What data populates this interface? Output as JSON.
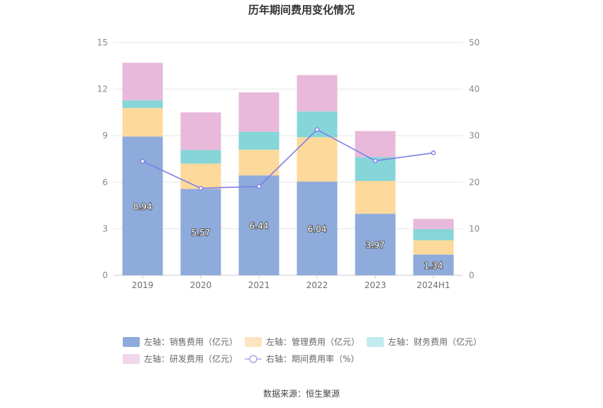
{
  "chart_data": {
    "type": "bar",
    "title": "历年期间费用变化情况",
    "categories": [
      "2019",
      "2020",
      "2021",
      "2022",
      "2023",
      "2024H1"
    ],
    "y_left": {
      "lim": [
        0,
        15
      ],
      "ticks": [
        0,
        3,
        6,
        9,
        12,
        15
      ]
    },
    "y_right": {
      "lim": [
        0,
        50
      ],
      "ticks": [
        0,
        10,
        20,
        30,
        40,
        50
      ]
    },
    "series": [
      {
        "name": "左轴：销售费用（亿元）",
        "type": "bar",
        "axis": "left",
        "color": "#8eabdc",
        "legend_color": "#8eabdc",
        "values": [
          8.94,
          5.57,
          6.44,
          6.04,
          3.97,
          1.34
        ],
        "labels": [
          "8.94",
          "5.57",
          "6.44",
          "6.04",
          "3.97",
          "1.34"
        ]
      },
      {
        "name": "左轴：管理费用（亿元）",
        "type": "bar",
        "axis": "left",
        "color": "#fdd99b",
        "legend_color": "#fde4c0",
        "values": [
          1.85,
          1.63,
          1.65,
          2.86,
          2.11,
          0.92
        ]
      },
      {
        "name": "左轴：财务费用（亿元）",
        "type": "bar",
        "axis": "left",
        "color": "#86d6d9",
        "legend_color": "#c2ebed",
        "values": [
          0.49,
          0.87,
          1.16,
          1.67,
          1.55,
          0.72
        ]
      },
      {
        "name": "左轴：研发费用（亿元）",
        "type": "bar",
        "axis": "left",
        "color": "#e8b9da",
        "legend_color": "#f1d6ea",
        "values": [
          2.42,
          2.43,
          2.54,
          2.34,
          1.67,
          0.66
        ]
      },
      {
        "name": "右轴：期间费用率（%）",
        "type": "line",
        "axis": "right",
        "color": "#7e7ee8",
        "legend_color": "#a9a9f0",
        "values": [
          24.5,
          18.7,
          19.1,
          31.3,
          24.6,
          26.3
        ]
      }
    ],
    "grid": true,
    "legend_position": "bottom"
  },
  "source": "数据来源：恒生聚源"
}
